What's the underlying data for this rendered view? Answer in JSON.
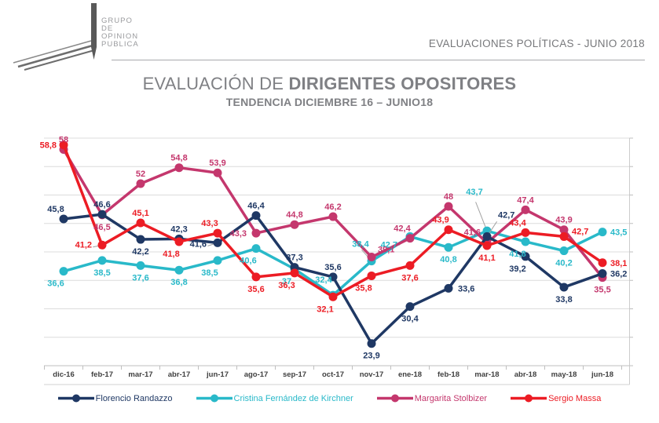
{
  "logo": {
    "lines": [
      "GRUPO",
      "DE",
      "OPINION",
      "PUBLICA"
    ]
  },
  "header": {
    "right_title": "EVALUACIONES POLÍTICAS - JUNIO 2018"
  },
  "title": {
    "prefix": "EVALUACIÓN DE ",
    "bold": "DIRIGENTES OPOSITORES"
  },
  "subtitle": "TENDENCIA DICIEMBRE 16  – JUNIO18",
  "chart_data": {
    "type": "line",
    "title": "EVALUACIÓN DE DIRIGENTES OPOSITORES",
    "subtitle": "TENDENCIA DICIEMBRE 16 – JUNIO18",
    "grid": true,
    "grid_step": 5,
    "ylim": [
      20,
      60
    ],
    "legend_position": "bottom",
    "categories": [
      "dic-16",
      "feb-17",
      "mar-17",
      "abr-17",
      "jun-17",
      "ago-17",
      "sep-17",
      "oct-17",
      "nov-17",
      "ene-18",
      "feb-18",
      "mar-18",
      "abr-18",
      "may-18",
      "jun-18"
    ],
    "series": [
      {
        "name": "Florencio Randazzo",
        "color": "#1f3864",
        "values": [
          45.8,
          46.6,
          42.2,
          42.3,
          41.6,
          46.4,
          37.3,
          35.6,
          23.9,
          30.4,
          33.6,
          42.7,
          39.2,
          33.8,
          36.2
        ],
        "label_pos": [
          "al",
          "a",
          "b",
          "a",
          {
            "dx": -14,
            "dy": 5,
            "anchor": "end",
            "leader": true
          },
          "a",
          "a",
          "a",
          "b",
          "b",
          {
            "dx": 12,
            "dy": 4,
            "anchor": "start"
          },
          {
            "dx": 14,
            "dy": -24,
            "anchor": "start",
            "leader": true
          },
          "bl",
          "b",
          {
            "dx": 10,
            "dy": 4,
            "anchor": "start"
          }
        ]
      },
      {
        "name": "Cristina Fernández de Kirchner",
        "color": "#29b9c9",
        "values": [
          36.6,
          38.5,
          37.6,
          36.8,
          38.5,
          40.6,
          37,
          32.4,
          38.4,
          42.7,
          40.8,
          43.7,
          41.8,
          40.2,
          43.5
        ],
        "label_pos": [
          "bl",
          "b",
          "b",
          "b",
          "bl",
          "bl",
          "bl",
          {
            "dx": -12,
            "dy": -16,
            "anchor": "middle"
          },
          {
            "dx": -14,
            "dy": -18,
            "anchor": "middle",
            "leader": true
          },
          {
            "dx": -16,
            "dy": 14,
            "anchor": "end",
            "leader": true
          },
          "b",
          {
            "dx": -16,
            "dy": -46,
            "anchor": "middle",
            "leader": true
          },
          "bl",
          "b",
          {
            "dx": 10,
            "dy": 4,
            "anchor": "start"
          }
        ]
      },
      {
        "name": "Margarita Stolbizer",
        "color": "#c4376d",
        "values": [
          58,
          46.5,
          52,
          54.8,
          53.9,
          43.3,
          44.8,
          46.2,
          39.1,
          42.4,
          48,
          41.6,
          47.4,
          43.9,
          35.5
        ],
        "label_pos": [
          "a",
          "b",
          "a",
          "a",
          "a",
          {
            "dx": -12,
            "dy": 4,
            "anchor": "end"
          },
          "a",
          "a",
          {
            "dx": 8,
            "dy": -6,
            "anchor": "start"
          },
          "al",
          "a",
          {
            "dx": -8,
            "dy": -10,
            "anchor": "end"
          },
          "a",
          "a",
          "b"
        ]
      },
      {
        "name": "Sergio Massa",
        "color": "#ec1c24",
        "values": [
          58.8,
          41.2,
          45.1,
          41.8,
          43.3,
          35.6,
          36.3,
          32.1,
          35.8,
          37.6,
          43.9,
          41.1,
          43.4,
          42.7,
          38.1
        ],
        "label_pos": [
          {
            "dx": -9,
            "dy": 4,
            "anchor": "end"
          },
          {
            "dx": -13,
            "dy": 3,
            "anchor": "end",
            "leader": true
          },
          "a",
          "bl",
          "al",
          "b",
          "bl",
          "bl",
          "bl",
          "b",
          "al",
          "b",
          "al",
          {
            "dx": 10,
            "dy": -3,
            "anchor": "start"
          },
          {
            "dx": 10,
            "dy": 4,
            "anchor": "start"
          }
        ]
      }
    ]
  }
}
